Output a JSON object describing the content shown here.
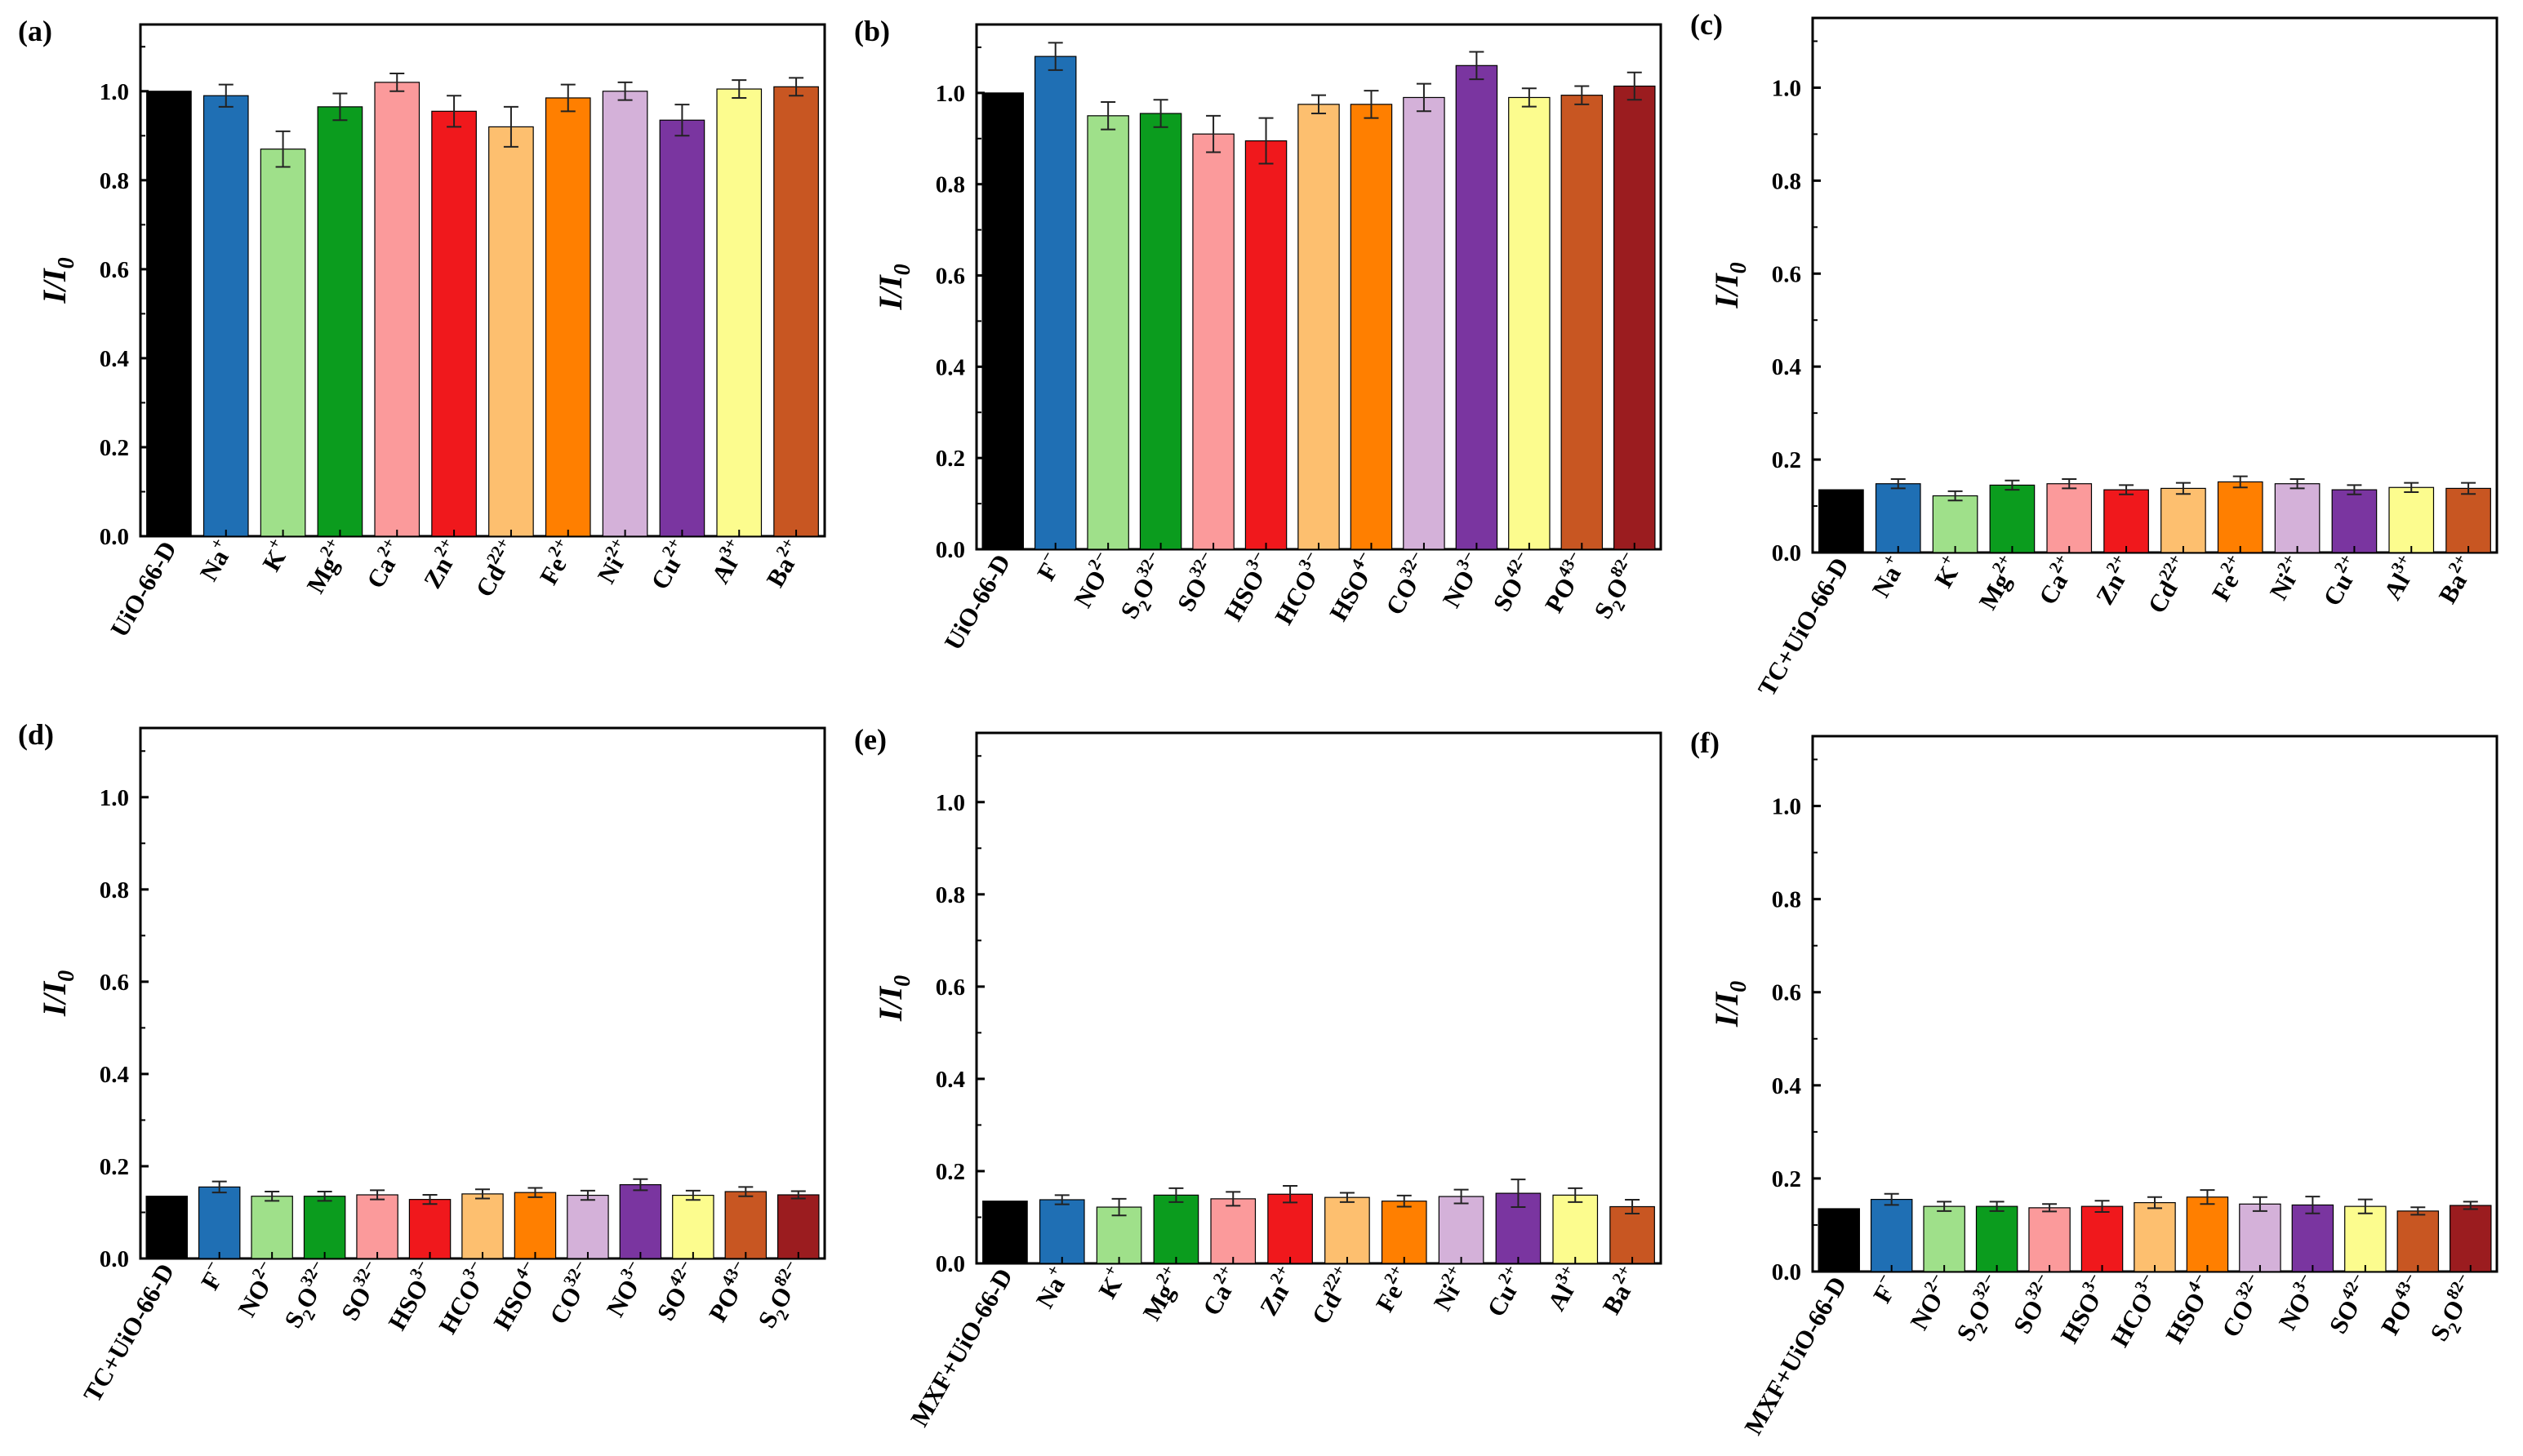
{
  "figure": {
    "title": ""
  },
  "ylabel": "I/I0",
  "cation_labels": [
    "Na+",
    "K+",
    "Mg2+",
    "Ca2+",
    "Zn2+",
    "Cd22+",
    "Fe2+",
    "Ni2+",
    "Cu2+",
    "Al3+",
    "Ba2+"
  ],
  "anion_labels": [
    "F−",
    "NO2−",
    "S2O32−",
    "SO32−",
    "HSO3−",
    "HCO3−",
    "HSO4−",
    "CO32−",
    "NO3−",
    "SO42−",
    "PO43−",
    "S2O82−"
  ],
  "colors": {
    "cation": [
      "#000000",
      "#1f6fb4",
      "#9fe08a",
      "#0b9c1e",
      "#fb9a9b",
      "#f0181c",
      "#fdbf6f",
      "#ff7f00",
      "#d4b1d9",
      "#7a35a0",
      "#fcfc8e",
      "#c85622"
    ],
    "anion": [
      "#000000",
      "#1f6fb4",
      "#9fe08a",
      "#0b9c1e",
      "#fb9a9b",
      "#f0181c",
      "#fdbf6f",
      "#ff7f00",
      "#d4b1d9",
      "#7a35a0",
      "#fcfc8e",
      "#c85622",
      "#9b1c1f"
    ]
  },
  "chart_data": [
    {
      "panel": "(a)",
      "type": "bar",
      "ylabel": "I/I0",
      "ylim": [
        0,
        1.15
      ],
      "yticks": [
        "0.0",
        "0.2",
        "0.4",
        "0.6",
        "0.8",
        "1.0"
      ],
      "categories": [
        "UiO-66-D",
        "Na+",
        "K+",
        "Mg2+",
        "Ca2+",
        "Zn2+",
        "Cd22+",
        "Fe2+",
        "Ni2+",
        "Cu2+",
        "Al3+",
        "Ba2+"
      ],
      "values": [
        1.0,
        0.99,
        0.87,
        0.965,
        1.02,
        0.955,
        0.92,
        0.985,
        1.0,
        0.935,
        1.005,
        1.01
      ],
      "errors": [
        0.0,
        0.025,
        0.04,
        0.03,
        0.02,
        0.035,
        0.045,
        0.03,
        0.02,
        0.035,
        0.02,
        0.02
      ]
    },
    {
      "panel": "(b)",
      "type": "bar",
      "ylabel": "I/I0",
      "ylim": [
        0,
        1.15
      ],
      "yticks": [
        "0.0",
        "0.2",
        "0.4",
        "0.6",
        "0.8",
        "1.0"
      ],
      "categories": [
        "UiO-66-D",
        "F−",
        "NO2−",
        "S2O32−",
        "SO32−",
        "HSO3−",
        "HCO3−",
        "HSO4−",
        "CO32−",
        "NO3−",
        "SO42−",
        "PO43−",
        "S2O82−"
      ],
      "values": [
        1.0,
        1.08,
        0.95,
        0.955,
        0.91,
        0.895,
        0.975,
        0.975,
        0.99,
        1.06,
        0.99,
        0.995,
        1.015
      ],
      "errors": [
        0.0,
        0.03,
        0.03,
        0.03,
        0.04,
        0.05,
        0.02,
        0.03,
        0.03,
        0.03,
        0.02,
        0.02,
        0.03
      ]
    },
    {
      "panel": "(c)",
      "type": "bar",
      "ylabel": "I/I0",
      "ylim": [
        0,
        1.15
      ],
      "yticks": [
        "0.0",
        "0.2",
        "0.4",
        "0.6",
        "0.8",
        "1.0"
      ],
      "categories": [
        "TC+UiO-66-D",
        "Na+",
        "K+",
        "Mg2+",
        "Ca2+",
        "Zn2+",
        "Cd22+",
        "Fe2+",
        "Ni2+",
        "Cu2+",
        "Al3+",
        "Ba2+"
      ],
      "values": [
        0.135,
        0.148,
        0.122,
        0.145,
        0.148,
        0.135,
        0.138,
        0.152,
        0.148,
        0.135,
        0.14,
        0.138
      ],
      "errors": [
        0.0,
        0.01,
        0.01,
        0.01,
        0.01,
        0.01,
        0.012,
        0.012,
        0.01,
        0.01,
        0.01,
        0.012
      ]
    },
    {
      "panel": "(d)",
      "type": "bar",
      "ylabel": "I/I0",
      "ylim": [
        0,
        1.15
      ],
      "yticks": [
        "0.0",
        "0.2",
        "0.4",
        "0.6",
        "0.8",
        "1.0"
      ],
      "categories": [
        "TC+UiO-66-D",
        "F−",
        "NO2−",
        "S2O32−",
        "SO32−",
        "HSO3−",
        "HCO3−",
        "HSO4−",
        "CO32−",
        "NO3−",
        "SO42−",
        "PO43−",
        "S2O82−"
      ],
      "values": [
        0.135,
        0.155,
        0.135,
        0.135,
        0.138,
        0.128,
        0.14,
        0.143,
        0.137,
        0.16,
        0.137,
        0.145,
        0.138
      ],
      "errors": [
        0.0,
        0.012,
        0.01,
        0.01,
        0.01,
        0.01,
        0.01,
        0.01,
        0.01,
        0.012,
        0.01,
        0.01,
        0.008
      ]
    },
    {
      "panel": "(e)",
      "type": "bar",
      "ylabel": "I/I0",
      "ylim": [
        0,
        1.15
      ],
      "yticks": [
        "0.0",
        "0.2",
        "0.4",
        "0.6",
        "0.8",
        "1.0"
      ],
      "categories": [
        "MXF+UiO-66-D",
        "Na+",
        "K+",
        "Mg2+",
        "Ca2+",
        "Zn2+",
        "Cd22+",
        "Fe2+",
        "Ni2+",
        "Cu2+",
        "Al3+",
        "Ba2+"
      ],
      "values": [
        0.135,
        0.138,
        0.122,
        0.148,
        0.14,
        0.15,
        0.143,
        0.135,
        0.145,
        0.152,
        0.148,
        0.123
      ],
      "errors": [
        0.0,
        0.01,
        0.018,
        0.015,
        0.015,
        0.018,
        0.01,
        0.012,
        0.015,
        0.03,
        0.015,
        0.015
      ]
    },
    {
      "panel": "(f)",
      "type": "bar",
      "ylabel": "I/I0",
      "ylim": [
        0,
        1.15
      ],
      "yticks": [
        "0.0",
        "0.2",
        "0.4",
        "0.6",
        "0.8",
        "1.0"
      ],
      "categories": [
        "MXF+UiO-66-D",
        "F−",
        "NO2−",
        "S2O32−",
        "SO32−",
        "HSO3−",
        "HCO3−",
        "HSO4−",
        "CO32−",
        "NO3−",
        "SO42−",
        "PO43−",
        "S2O82−"
      ],
      "values": [
        0.135,
        0.155,
        0.14,
        0.14,
        0.137,
        0.14,
        0.148,
        0.16,
        0.145,
        0.143,
        0.14,
        0.13,
        0.142
      ],
      "errors": [
        0.0,
        0.012,
        0.01,
        0.01,
        0.008,
        0.012,
        0.012,
        0.015,
        0.015,
        0.018,
        0.015,
        0.008,
        0.008
      ]
    }
  ]
}
